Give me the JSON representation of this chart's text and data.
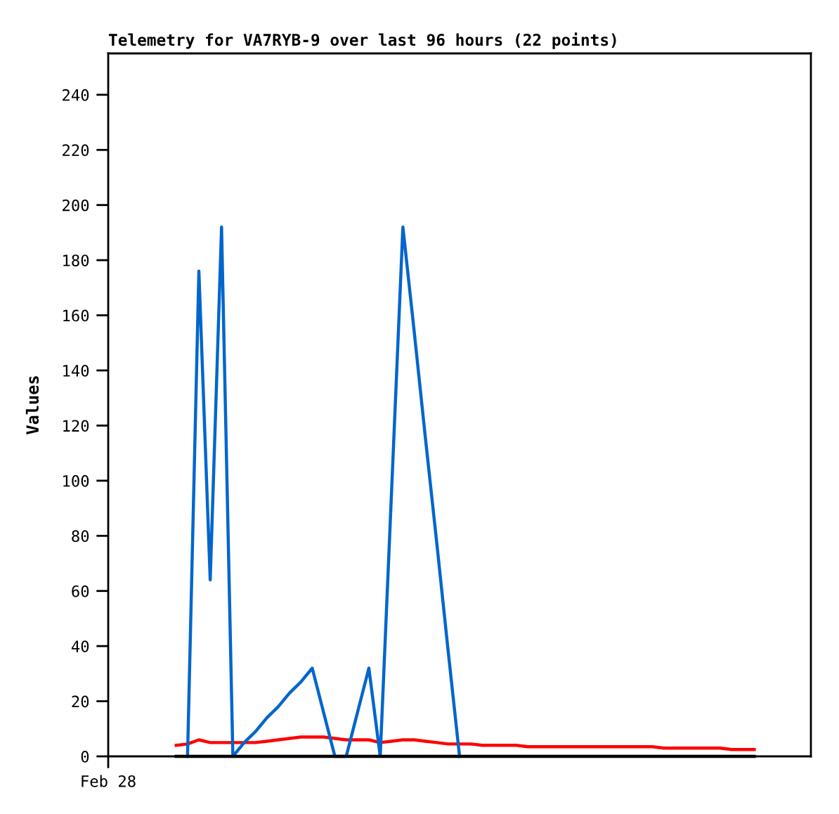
{
  "chart_data": {
    "type": "line",
    "title": "Telemetry for VA7RYB-9 over last 96 hours (22 points)",
    "ylabel": "Values",
    "categories": [
      "Feb 28",
      null,
      null,
      null,
      null,
      null,
      null,
      null,
      null,
      null,
      null,
      null,
      null,
      null,
      null,
      null,
      null,
      null,
      null,
      null,
      null,
      null,
      null,
      null,
      null,
      null,
      null,
      null,
      null,
      null,
      null,
      null,
      null,
      null,
      null,
      null,
      null,
      null,
      null,
      null,
      null,
      null,
      null,
      null,
      null,
      null,
      null,
      null,
      null,
      null,
      null,
      null,
      null,
      null,
      null,
      null,
      null,
      null,
      null,
      null,
      null,
      null,
      null
    ],
    "ylim": [
      0,
      255
    ],
    "yticks": [
      0,
      20,
      40,
      60,
      80,
      100,
      120,
      140,
      160,
      180,
      200,
      220,
      240
    ],
    "grid": false,
    "marker": "none",
    "line_style": "solid",
    "series": [
      {
        "color": "#ff0000",
        "values": [
          null,
          null,
          null,
          null,
          null,
          null,
          4,
          4.5,
          6,
          5,
          5,
          5,
          5,
          5,
          5.5,
          6,
          6.5,
          7,
          7,
          7,
          6.5,
          6,
          6,
          6,
          5,
          5.5,
          6,
          6,
          5.5,
          5,
          4.5,
          4.5,
          4.5,
          4,
          4,
          4,
          4,
          3.5,
          3.5,
          3.5,
          3.5,
          3.5,
          3.5,
          3.5,
          3.5,
          3.5,
          3.5,
          3.5,
          3.5,
          3,
          3,
          3,
          3,
          3,
          3,
          2.5,
          2.5,
          2.5,
          null,
          null,
          null,
          null,
          null
        ]
      },
      {
        "color": "#0066cc",
        "values": [
          null,
          null,
          null,
          null,
          null,
          null,
          null,
          0,
          176,
          64,
          192,
          0,
          5,
          9,
          14,
          18,
          23,
          27,
          32,
          16,
          0,
          0,
          16,
          32,
          0,
          96,
          192,
          154,
          115,
          77,
          38,
          0,
          null,
          null,
          null,
          null,
          null,
          null,
          null,
          null,
          null,
          null,
          null,
          null,
          null,
          null,
          null,
          null,
          null,
          null,
          null,
          null,
          null,
          null,
          null,
          null,
          null,
          null,
          null,
          null,
          null,
          null,
          null
        ]
      },
      {
        "color": "#000000",
        "values": [
          null,
          null,
          null,
          null,
          null,
          null,
          0,
          0,
          0,
          0,
          0,
          0,
          0,
          0,
          0,
          0,
          0,
          0,
          0,
          0,
          0,
          0,
          0,
          0,
          0,
          0,
          0,
          0,
          0,
          0,
          0,
          0,
          0,
          0,
          0,
          0,
          0,
          0,
          0,
          0,
          0,
          0,
          0,
          0,
          0,
          0,
          0,
          0,
          0,
          0,
          0,
          0,
          0,
          0,
          0,
          0,
          0,
          0,
          null,
          null,
          null,
          null,
          null
        ]
      }
    ]
  }
}
